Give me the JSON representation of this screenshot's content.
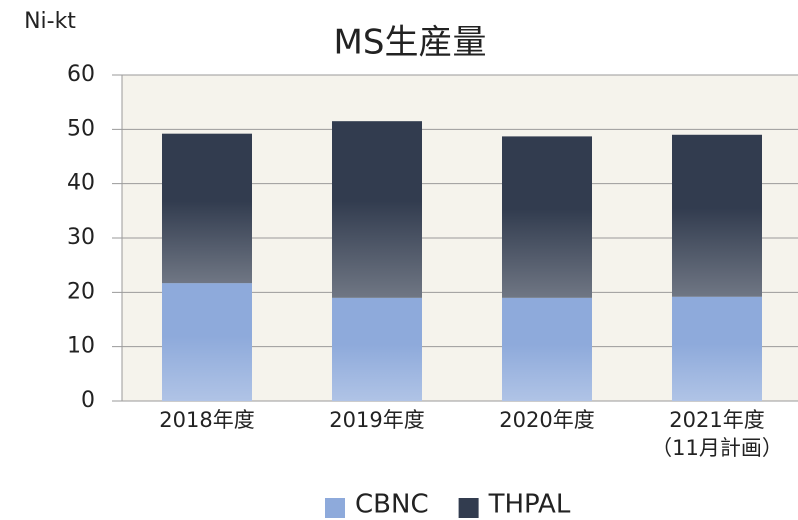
{
  "chart_data": {
    "type": "bar",
    "stacked": true,
    "title": "MS生産量",
    "y_label": "Ni-kt",
    "categories": [
      "2018年度",
      "2019年度",
      "2020年度",
      "2021年度\n（11月計画）"
    ],
    "series": [
      {
        "name": "CBNC",
        "color": "#8eaadb",
        "values": [
          21.7,
          19.0,
          19.0,
          19.2
        ]
      },
      {
        "name": "THPAL",
        "color": "#323c4f",
        "values": [
          27.5,
          32.5,
          29.7,
          29.8
        ]
      }
    ],
    "ylim": [
      0,
      60
    ],
    "yticks": [
      0,
      10,
      20,
      30,
      40,
      50,
      60
    ],
    "grid": true,
    "legend": "bottom"
  }
}
